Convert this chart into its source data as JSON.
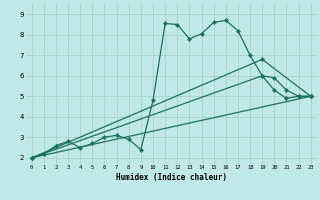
{
  "xlabel": "Humidex (Indice chaleur)",
  "bg_color": "#c0e8e8",
  "grid_color": "#aacece",
  "line_color": "#1a7060",
  "xlim": [
    -0.5,
    23.5
  ],
  "ylim": [
    1.7,
    9.5
  ],
  "xticks": [
    0,
    1,
    2,
    3,
    4,
    5,
    6,
    7,
    8,
    9,
    10,
    11,
    12,
    13,
    14,
    15,
    16,
    17,
    18,
    19,
    20,
    21,
    22,
    23
  ],
  "yticks": [
    2,
    3,
    4,
    5,
    6,
    7,
    8,
    9
  ],
  "line1_x": [
    0,
    1,
    2,
    3,
    4,
    5,
    6,
    7,
    8,
    9,
    10,
    11,
    12,
    13,
    14,
    15,
    16,
    17,
    18,
    19,
    20,
    21,
    22,
    23
  ],
  "line1_y": [
    2.0,
    2.2,
    2.6,
    2.8,
    2.5,
    2.7,
    3.0,
    3.1,
    2.9,
    2.4,
    4.8,
    8.55,
    8.5,
    7.8,
    8.05,
    8.6,
    8.7,
    8.2,
    7.0,
    6.0,
    5.3,
    4.9,
    5.0,
    5.0
  ],
  "line2_x": [
    0,
    23
  ],
  "line2_y": [
    2.0,
    5.0
  ],
  "line3_x": [
    0,
    23
  ],
  "line3_y": [
    2.0,
    5.0
  ],
  "line4_x": [
    0,
    19,
    20,
    21,
    22,
    23
  ],
  "line4_y": [
    2.0,
    6.0,
    5.9,
    5.3,
    5.0,
    5.0
  ],
  "line5_x": [
    0,
    19,
    23
  ],
  "line5_y": [
    2.0,
    6.8,
    5.0
  ],
  "marker": "D",
  "markersize": 2.2,
  "linewidth": 0.9
}
